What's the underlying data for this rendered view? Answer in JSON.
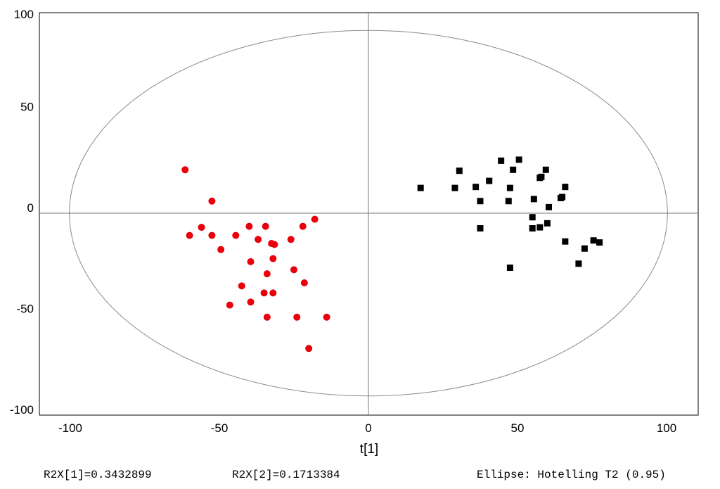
{
  "chart_data": {
    "type": "scatter",
    "xlabel": "t[1]",
    "ylabel": "",
    "xlim": [
      -110,
      110
    ],
    "ylim": [
      -100,
      100
    ],
    "x_ticks": [
      -100,
      -50,
      0,
      50,
      100
    ],
    "x_tick_labels": [
      "-100",
      "-50",
      "0",
      "50",
      "100"
    ],
    "y_ticks": [
      100,
      50,
      0,
      -50,
      -100
    ],
    "y_tick_labels": [
      "100",
      "50",
      "0",
      "-50",
      "-100"
    ],
    "grid": false,
    "ellipse": {
      "center": [
        0,
        0
      ],
      "semi_x": 100.3,
      "semi_y": 90.5
    },
    "series": [
      {
        "color": "#e8000b",
        "marker": "circle",
        "points": [
          [
            -61.5,
            21.5
          ],
          [
            -52.5,
            6
          ],
          [
            -60,
            -11
          ],
          [
            -56,
            -7
          ],
          [
            -52.5,
            -11
          ],
          [
            -49.5,
            -18
          ],
          [
            -44.5,
            -11
          ],
          [
            -40,
            -6.5
          ],
          [
            -37,
            -13
          ],
          [
            -34.5,
            -6.5
          ],
          [
            -32.5,
            -15
          ],
          [
            -31.5,
            -15.5
          ],
          [
            -26,
            -13
          ],
          [
            -22,
            -6.5
          ],
          [
            -18,
            -3
          ],
          [
            -39.5,
            -24
          ],
          [
            -32,
            -22.5
          ],
          [
            -34,
            -30
          ],
          [
            -25,
            -28
          ],
          [
            -21.5,
            -34.5
          ],
          [
            -42.5,
            -36
          ],
          [
            -35,
            -39.5
          ],
          [
            -32,
            -39.5
          ],
          [
            -46.5,
            -45.5
          ],
          [
            -39.5,
            -44
          ],
          [
            -34,
            -51.5
          ],
          [
            -24,
            -51.5
          ],
          [
            -14,
            -51.5
          ],
          [
            -20,
            -67
          ]
        ]
      },
      {
        "color": "#000000",
        "marker": "square",
        "points": [
          [
            17.5,
            12.5
          ],
          [
            30.5,
            21
          ],
          [
            29,
            12.5
          ],
          [
            36,
            13
          ],
          [
            40.5,
            16
          ],
          [
            37.5,
            6
          ],
          [
            44.5,
            26
          ],
          [
            47.5,
            12.5
          ],
          [
            48.5,
            21.5
          ],
          [
            50.5,
            26.5
          ],
          [
            47,
            6
          ],
          [
            55.5,
            7
          ],
          [
            57.5,
            17.5
          ],
          [
            58,
            18
          ],
          [
            59.5,
            21.5
          ],
          [
            60.5,
            3
          ],
          [
            64.5,
            7.5
          ],
          [
            65,
            8
          ],
          [
            66,
            13
          ],
          [
            55,
            -2
          ],
          [
            55,
            -7.5
          ],
          [
            57.5,
            -7
          ],
          [
            60,
            -5
          ],
          [
            37.5,
            -7.5
          ],
          [
            66,
            -14
          ],
          [
            70.5,
            -25
          ],
          [
            72.5,
            -17.5
          ],
          [
            75.5,
            -13.5
          ],
          [
            77.5,
            -14.5
          ],
          [
            47.5,
            -27
          ]
        ]
      }
    ]
  },
  "footer": {
    "r2x1": "R2X[1]=0.3432899",
    "r2x2": "R2X[2]=0.1713384",
    "ellipse": "Ellipse: Hotelling T2 (0.95)"
  }
}
